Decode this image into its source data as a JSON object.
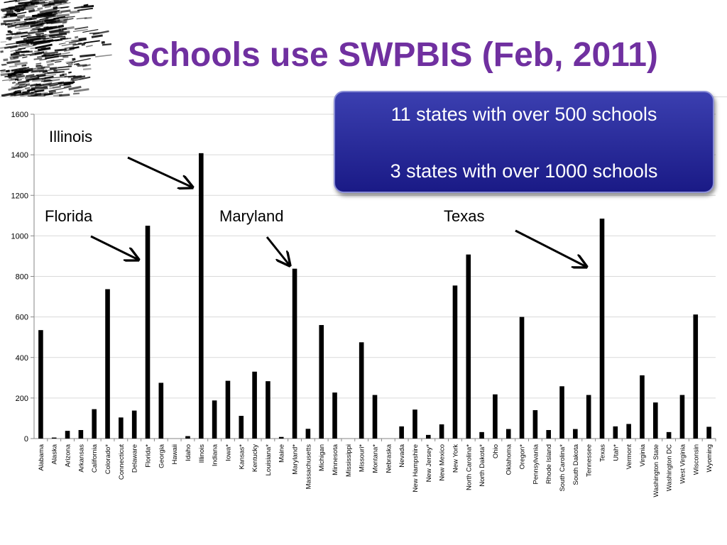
{
  "slide": {
    "title": "Schools use SWPBIS (Feb, 2011)",
    "title_color": "#7030a0",
    "header_decoration": "black-textured-brush-stroke-graphic"
  },
  "callout": {
    "line1": "11 states with over 500 schools",
    "line2": "3 states with over 1000 schools",
    "fill_color": "#23259a"
  },
  "annotations": [
    {
      "label": "Illinois"
    },
    {
      "label": "Florida"
    },
    {
      "label": "Maryland"
    },
    {
      "label": "Texas"
    }
  ],
  "chart_data": {
    "type": "bar",
    "title": "",
    "xlabel": "",
    "ylabel": "",
    "ylim": [
      0,
      1600
    ],
    "yticks": [
      0,
      200,
      400,
      600,
      800,
      1000,
      1200,
      1400,
      1600
    ],
    "grid": true,
    "legend": "none",
    "bar_color": "#000000",
    "categories": [
      "Alabama",
      "Alaska",
      "Arizona",
      "Arkansas",
      "California",
      "Colorado*",
      "Connecticut",
      "Delaware",
      "Florida*",
      "Georgia",
      "Hawaii",
      "Idaho",
      "Illinois",
      "Indiana",
      "Iowa*",
      "Kansas*",
      "Kentucky",
      "Louisiana*",
      "Maine",
      "Maryland*",
      "Massachusetts",
      "Michigan",
      "Minnesota",
      "Mississippi",
      "Missouri*",
      "Montana*",
      "Nebraska",
      "Nevada",
      "New Hampshire",
      "New Jersey*",
      "New Mexico",
      "New York",
      "North Carolina*",
      "North Dakota*",
      "Ohio",
      "Oklahoma",
      "Oregon*",
      "Pennsylvania",
      "Rhode Island",
      "South Carolina*",
      "South Dakota",
      "Tennessee",
      "Texas",
      "Utah*",
      "Vermont",
      "Virginia",
      "Washington State",
      "Washington DC",
      "West Virginia",
      "Wisconsin",
      "Wyoming"
    ],
    "values": [
      535,
      5,
      38,
      42,
      145,
      737,
      104,
      138,
      1050,
      275,
      0,
      12,
      1408,
      188,
      285,
      112,
      330,
      283,
      8,
      838,
      48,
      560,
      227,
      0,
      475,
      215,
      0,
      60,
      143,
      18,
      70,
      755,
      908,
      32,
      218,
      47,
      600,
      140,
      42,
      258,
      47,
      215,
      1085,
      60,
      72,
      312,
      178,
      32,
      215,
      612,
      58
    ]
  }
}
